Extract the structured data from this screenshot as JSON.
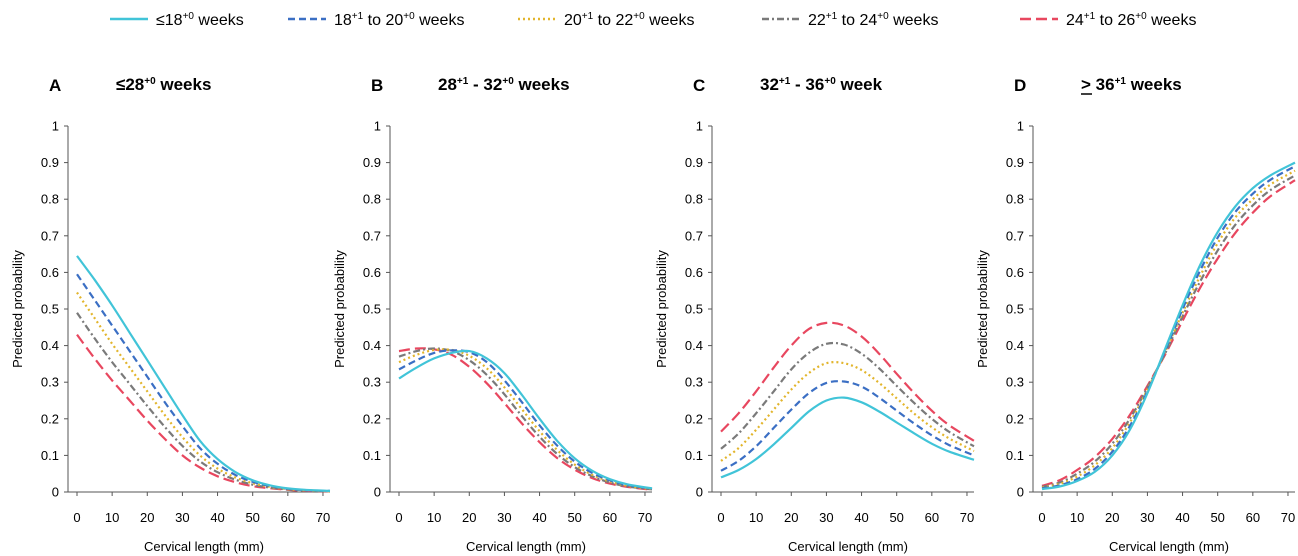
{
  "legend": [
    {
      "series": 0,
      "prefix": "≤18",
      "sup1": "+0",
      "mid": " weeks",
      "sup2": "",
      "suffix": ""
    },
    {
      "series": 1,
      "prefix": "18",
      "sup1": "+1",
      "mid": " to 20",
      "sup2": "+0",
      "suffix": " weeks"
    },
    {
      "series": 2,
      "prefix": "20",
      "sup1": "+1",
      "mid": " to 22",
      "sup2": "+0",
      "suffix": " weeks"
    },
    {
      "series": 3,
      "prefix": "22",
      "sup1": "+1",
      "mid": " to 24",
      "sup2": "+0",
      "suffix": " weeks"
    },
    {
      "series": 4,
      "prefix": "24",
      "sup1": "+1",
      "mid": " to 26",
      "sup2": "+0",
      "suffix": " weeks"
    }
  ],
  "styles": [
    {
      "color": "#41c4d8",
      "dash": "none"
    },
    {
      "color": "#3b6fc4",
      "dash": "7,4"
    },
    {
      "color": "#e2b52c",
      "dash": "2,3"
    },
    {
      "color": "#7a7a7a",
      "dash": "7,3,2,3"
    },
    {
      "color": "#e8475f",
      "dash": "11,5"
    }
  ],
  "axis": {
    "xlabel": "Cervical length (mm)",
    "ylabel": "Predicted probability",
    "xticks": [
      "0",
      "10",
      "20",
      "30",
      "40",
      "50",
      "60",
      "70"
    ],
    "yticks": [
      "0",
      "0.1",
      "0.2",
      "0.3",
      "0.4",
      "0.5",
      "0.6",
      "0.7",
      "0.8",
      "0.9",
      "1"
    ]
  },
  "panels": [
    {
      "letter": "A",
      "title_pre": "≤28",
      "title_sup": "+0",
      "title_mid": " weeks",
      "title_sup2": "",
      "title_post": "",
      "underline": false
    },
    {
      "letter": "B",
      "title_pre": "28",
      "title_sup": "+1",
      "title_mid": " - 32",
      "title_sup2": "+0",
      "title_post": " weeks",
      "underline": false
    },
    {
      "letter": "C",
      "title_pre": "32",
      "title_sup": "+1",
      "title_mid": " - 36",
      "title_sup2": "+0",
      "title_post": " week",
      "underline": false
    },
    {
      "letter": "D",
      "title_pre": "> 36",
      "title_sup": "+1",
      "title_mid": " weeks",
      "title_sup2": "",
      "title_post": "",
      "underline": true
    }
  ],
  "chart_data": [
    {
      "type": "line",
      "title": "≤28+0 weeks",
      "xlabel": "Cervical length (mm)",
      "ylabel": "Predicted probability",
      "xlim": [
        0,
        72
      ],
      "ylim": [
        0,
        1
      ],
      "x": [
        0,
        5,
        10,
        15,
        20,
        25,
        30,
        35,
        40,
        45,
        50,
        55,
        60,
        65,
        72
      ],
      "series": [
        {
          "name": "≤18+0 weeks",
          "values": [
            0.645,
            0.58,
            0.51,
            0.435,
            0.36,
            0.285,
            0.21,
            0.14,
            0.09,
            0.055,
            0.032,
            0.018,
            0.01,
            0.006,
            0.003
          ]
        },
        {
          "name": "18+1 to 20+0 weeks",
          "values": [
            0.595,
            0.525,
            0.455,
            0.385,
            0.315,
            0.245,
            0.18,
            0.12,
            0.077,
            0.047,
            0.028,
            0.016,
            0.009,
            0.005,
            0.003
          ]
        },
        {
          "name": "20+1 to 22+0 weeks",
          "values": [
            0.545,
            0.475,
            0.405,
            0.34,
            0.275,
            0.21,
            0.15,
            0.1,
            0.064,
            0.04,
            0.024,
            0.014,
            0.008,
            0.005,
            0.002
          ]
        },
        {
          "name": "22+1 to 24+0 weeks",
          "values": [
            0.49,
            0.42,
            0.355,
            0.295,
            0.235,
            0.178,
            0.126,
            0.084,
            0.054,
            0.034,
            0.02,
            0.012,
            0.007,
            0.004,
            0.002
          ]
        },
        {
          "name": "24+1 to 26+0 weeks",
          "values": [
            0.43,
            0.365,
            0.305,
            0.25,
            0.195,
            0.145,
            0.1,
            0.067,
            0.043,
            0.027,
            0.016,
            0.01,
            0.006,
            0.003,
            0.002
          ]
        }
      ]
    },
    {
      "type": "line",
      "title": "28+1 - 32+0 weeks",
      "xlabel": "Cervical length (mm)",
      "ylabel": "Predicted probability",
      "xlim": [
        0,
        72
      ],
      "ylim": [
        0,
        1
      ],
      "x": [
        0,
        5,
        10,
        15,
        20,
        25,
        30,
        35,
        40,
        45,
        50,
        55,
        60,
        65,
        72
      ],
      "series": [
        {
          "name": "≤18+0 weeks",
          "values": [
            0.31,
            0.34,
            0.365,
            0.38,
            0.385,
            0.365,
            0.325,
            0.265,
            0.2,
            0.14,
            0.092,
            0.058,
            0.035,
            0.021,
            0.01
          ]
        },
        {
          "name": "18+1 to 20+0 weeks",
          "values": [
            0.335,
            0.36,
            0.38,
            0.387,
            0.382,
            0.355,
            0.305,
            0.245,
            0.182,
            0.127,
            0.083,
            0.052,
            0.032,
            0.019,
            0.009
          ]
        },
        {
          "name": "20+1 to 22+0 weeks",
          "values": [
            0.355,
            0.375,
            0.388,
            0.388,
            0.372,
            0.338,
            0.286,
            0.226,
            0.166,
            0.115,
            0.075,
            0.047,
            0.029,
            0.017,
            0.008
          ]
        },
        {
          "name": "22+1 to 24+0 weeks",
          "values": [
            0.37,
            0.385,
            0.392,
            0.385,
            0.36,
            0.32,
            0.267,
            0.207,
            0.151,
            0.104,
            0.068,
            0.043,
            0.026,
            0.015,
            0.007
          ]
        },
        {
          "name": "24+1 to 26+0 weeks",
          "values": [
            0.385,
            0.392,
            0.39,
            0.375,
            0.342,
            0.297,
            0.243,
            0.187,
            0.136,
            0.093,
            0.061,
            0.038,
            0.023,
            0.014,
            0.006
          ]
        }
      ]
    },
    {
      "type": "line",
      "title": "32+1 - 36+0 week",
      "xlabel": "Cervical length (mm)",
      "ylabel": "Predicted probability",
      "xlim": [
        0,
        72
      ],
      "ylim": [
        0,
        1
      ],
      "x": [
        0,
        5,
        10,
        15,
        20,
        25,
        30,
        35,
        40,
        45,
        50,
        55,
        60,
        65,
        72
      ],
      "series": [
        {
          "name": "≤18+0 weeks",
          "values": [
            0.04,
            0.06,
            0.09,
            0.13,
            0.175,
            0.22,
            0.25,
            0.258,
            0.245,
            0.22,
            0.19,
            0.16,
            0.132,
            0.11,
            0.088
          ]
        },
        {
          "name": "18+1 to 20+0 weeks",
          "values": [
            0.058,
            0.085,
            0.125,
            0.175,
            0.225,
            0.27,
            0.298,
            0.302,
            0.288,
            0.258,
            0.222,
            0.187,
            0.155,
            0.128,
            0.1
          ]
        },
        {
          "name": "20+1 to 22+0 weeks",
          "values": [
            0.085,
            0.12,
            0.17,
            0.225,
            0.28,
            0.325,
            0.352,
            0.352,
            0.333,
            0.298,
            0.256,
            0.214,
            0.177,
            0.146,
            0.112
          ]
        },
        {
          "name": "22+1 to 24+0 weeks",
          "values": [
            0.118,
            0.16,
            0.215,
            0.275,
            0.335,
            0.38,
            0.405,
            0.403,
            0.378,
            0.338,
            0.29,
            0.243,
            0.2,
            0.164,
            0.125
          ]
        },
        {
          "name": "24+1 to 26+0 weeks",
          "values": [
            0.165,
            0.215,
            0.275,
            0.34,
            0.4,
            0.445,
            0.462,
            0.455,
            0.425,
            0.378,
            0.323,
            0.27,
            0.222,
            0.182,
            0.14
          ]
        }
      ]
    },
    {
      "type": "line",
      "title": "> 36+1 weeks",
      "xlabel": "Cervical length (mm)",
      "ylabel": "Predicted probability",
      "xlim": [
        0,
        72
      ],
      "ylim": [
        0,
        1
      ],
      "x": [
        0,
        5,
        10,
        15,
        20,
        25,
        30,
        35,
        40,
        45,
        50,
        55,
        60,
        65,
        72
      ],
      "series": [
        {
          "name": "≤18+0 weeks",
          "values": [
            0.008,
            0.015,
            0.03,
            0.055,
            0.1,
            0.17,
            0.27,
            0.39,
            0.51,
            0.62,
            0.71,
            0.78,
            0.83,
            0.865,
            0.9
          ]
        },
        {
          "name": "18+1 to 20+0 weeks",
          "values": [
            0.01,
            0.018,
            0.035,
            0.063,
            0.11,
            0.18,
            0.275,
            0.385,
            0.5,
            0.605,
            0.695,
            0.765,
            0.815,
            0.853,
            0.89
          ]
        },
        {
          "name": "20+1 to 22+0 weeks",
          "values": [
            0.012,
            0.022,
            0.042,
            0.073,
            0.12,
            0.19,
            0.28,
            0.382,
            0.49,
            0.59,
            0.68,
            0.75,
            0.8,
            0.84,
            0.878
          ]
        },
        {
          "name": "22+1 to 24+0 weeks",
          "values": [
            0.014,
            0.026,
            0.05,
            0.083,
            0.132,
            0.2,
            0.285,
            0.378,
            0.48,
            0.575,
            0.66,
            0.73,
            0.783,
            0.825,
            0.865
          ]
        },
        {
          "name": "24+1 to 26+0 weeks",
          "values": [
            0.017,
            0.032,
            0.06,
            0.095,
            0.145,
            0.21,
            0.29,
            0.375,
            0.468,
            0.558,
            0.638,
            0.708,
            0.763,
            0.808,
            0.852
          ]
        }
      ]
    }
  ]
}
